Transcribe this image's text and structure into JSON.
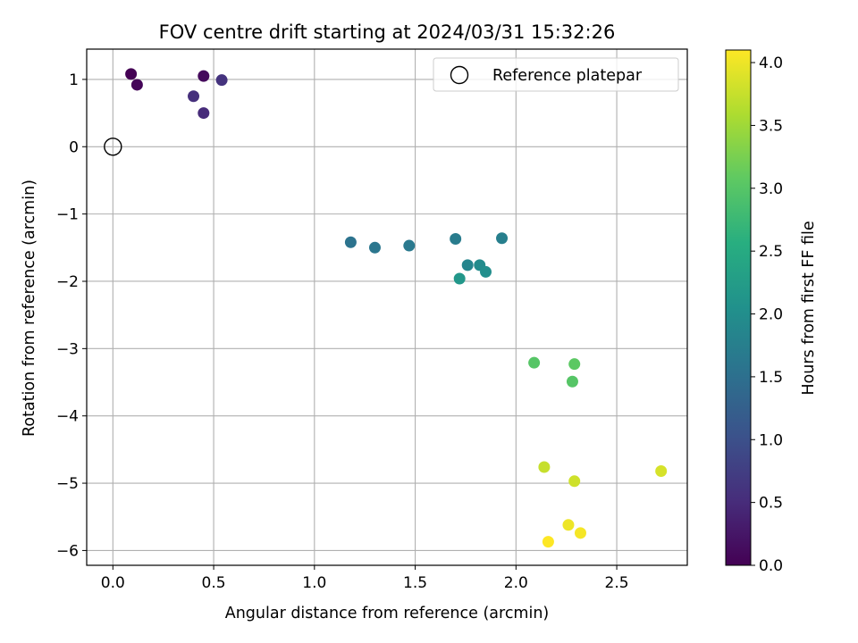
{
  "chart_data": {
    "type": "scatter",
    "title": "FOV centre drift starting at 2024/03/31 15:32:26",
    "xlabel": "Angular distance from reference (arcmin)",
    "ylabel": "Rotation from reference (arcmin)",
    "xlim": [
      -0.13,
      2.85
    ],
    "ylim": [
      -6.22,
      1.45
    ],
    "x_ticks": [
      0.0,
      0.5,
      1.0,
      1.5,
      2.0,
      2.5
    ],
    "x_tick_labels": [
      "0.0",
      "0.5",
      "1.0",
      "1.5",
      "2.0",
      "2.5"
    ],
    "y_ticks": [
      1,
      0,
      -1,
      -2,
      -3,
      -4,
      -5,
      -6
    ],
    "y_tick_labels": [
      "1",
      "0",
      "−1",
      "−2",
      "−3",
      "−4",
      "−5",
      "−6"
    ],
    "grid": true,
    "legend": {
      "position": "top-right",
      "entries": [
        "Reference platepar"
      ]
    },
    "reference": {
      "x": 0.0,
      "y": 0.0,
      "marker": "open-circle"
    },
    "colormap": "viridis",
    "colorbar": {
      "label": "Hours from first FF file",
      "range": [
        0.0,
        4.1
      ],
      "ticks": [
        0.0,
        0.5,
        1.0,
        1.5,
        2.0,
        2.5,
        3.0,
        3.5,
        4.0
      ],
      "tick_labels": [
        "0.0",
        "0.5",
        "1.0",
        "1.5",
        "2.0",
        "2.5",
        "3.0",
        "3.5",
        "4.0"
      ]
    },
    "points": [
      {
        "x": 0.09,
        "y": 1.08,
        "hours": 0.0
      },
      {
        "x": 0.12,
        "y": 0.92,
        "hours": 0.05
      },
      {
        "x": 0.45,
        "y": 1.05,
        "hours": 0.1
      },
      {
        "x": 0.54,
        "y": 0.99,
        "hours": 0.6
      },
      {
        "x": 0.4,
        "y": 0.75,
        "hours": 0.55
      },
      {
        "x": 0.45,
        "y": 0.5,
        "hours": 0.5
      },
      {
        "x": 1.18,
        "y": -1.42,
        "hours": 1.55
      },
      {
        "x": 1.3,
        "y": -1.5,
        "hours": 1.6
      },
      {
        "x": 1.47,
        "y": -1.47,
        "hours": 1.65
      },
      {
        "x": 1.7,
        "y": -1.37,
        "hours": 1.7
      },
      {
        "x": 1.93,
        "y": -1.36,
        "hours": 1.75
      },
      {
        "x": 1.76,
        "y": -1.76,
        "hours": 1.85
      },
      {
        "x": 1.82,
        "y": -1.76,
        "hours": 1.95
      },
      {
        "x": 1.85,
        "y": -1.86,
        "hours": 2.0
      },
      {
        "x": 1.72,
        "y": -1.96,
        "hours": 2.15
      },
      {
        "x": 2.09,
        "y": -3.21,
        "hours": 3.0
      },
      {
        "x": 2.29,
        "y": -3.23,
        "hours": 3.05
      },
      {
        "x": 2.28,
        "y": -3.49,
        "hours": 3.0
      },
      {
        "x": 2.14,
        "y": -4.76,
        "hours": 3.75
      },
      {
        "x": 2.29,
        "y": -4.97,
        "hours": 3.8
      },
      {
        "x": 2.72,
        "y": -4.82,
        "hours": 3.85
      },
      {
        "x": 2.26,
        "y": -5.62,
        "hours": 4.0
      },
      {
        "x": 2.32,
        "y": -5.74,
        "hours": 4.05
      },
      {
        "x": 2.16,
        "y": -5.87,
        "hours": 4.1
      }
    ]
  }
}
